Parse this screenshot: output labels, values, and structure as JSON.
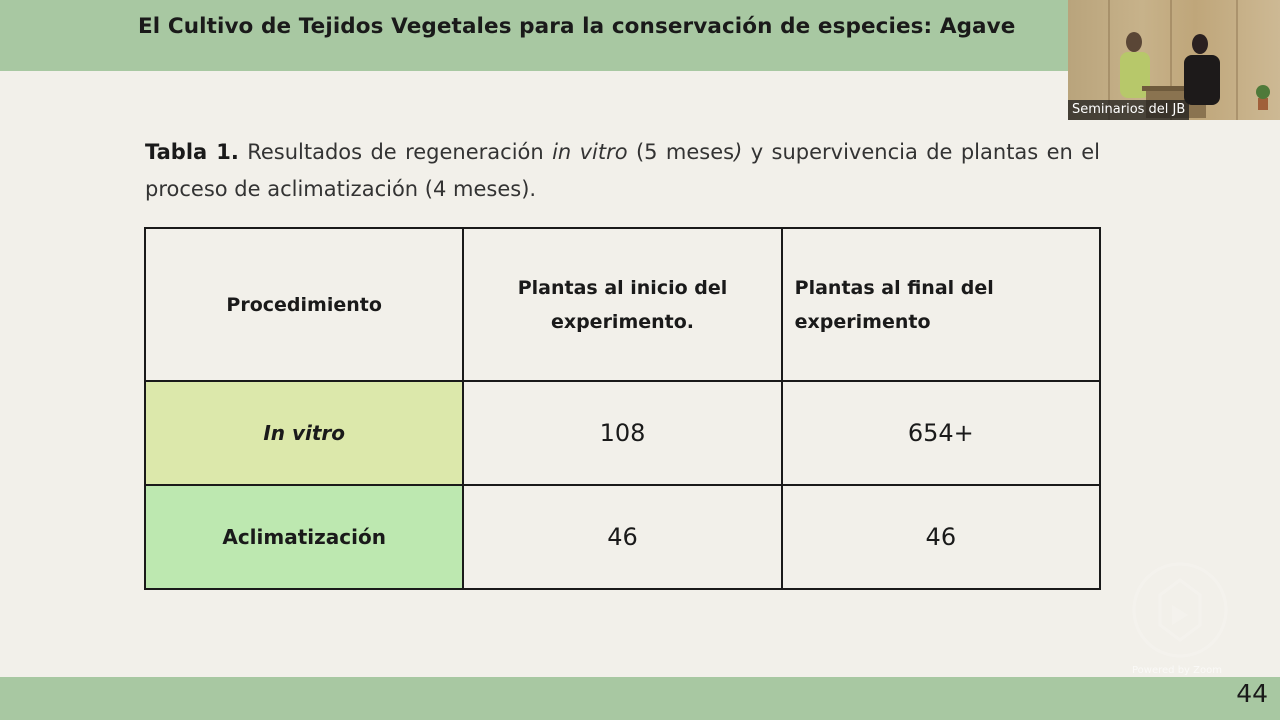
{
  "slide": {
    "title": "El Cultivo de Tejidos Vegetales para la conservación de especies: Agave",
    "page_number": "44"
  },
  "video": {
    "label": "Seminarios del JB"
  },
  "caption": {
    "bold": "Tabla 1.",
    "part1": " Resultados de regeneración ",
    "italic1": "in vitro",
    "part2": " (5 meses",
    "italic2": ")",
    "part3": " y supervivencia de plantas en el proceso de aclimatización (4 meses)."
  },
  "table": {
    "headers": {
      "procedimiento": "Procedimiento",
      "inicio": "Plantas al inicio del experimento.",
      "final": "Plantas al final del experimento"
    },
    "rows": [
      {
        "label": "In vitro",
        "inicio": "108",
        "final": "654+"
      },
      {
        "label": "Aclimatización",
        "inicio": "46",
        "final": "46"
      }
    ]
  },
  "overlay": {
    "powered_by": "Powered by Zoom"
  },
  "colors": {
    "header_green": "#a8c8a2",
    "invitro_cell": "#dce8ab",
    "aclim_cell": "#bde8b0",
    "background": "#f2f0ea"
  }
}
